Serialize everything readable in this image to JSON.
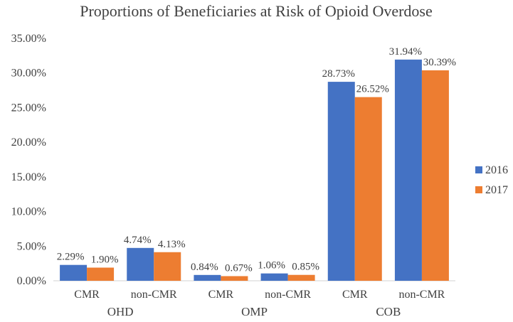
{
  "chart_data": {
    "type": "bar",
    "title": "Proportions of Beneficiaries at Risk of Opioid Overdose",
    "groups": [
      {
        "name": "OHD",
        "categories": [
          "CMR",
          "non-CMR"
        ]
      },
      {
        "name": "OMP",
        "categories": [
          "CMR",
          "non-CMR"
        ]
      },
      {
        "name": "COB",
        "categories": [
          "CMR",
          "non-CMR"
        ]
      }
    ],
    "series": [
      {
        "name": "2016",
        "color": "#4472C4",
        "values": [
          2.29,
          4.74,
          0.84,
          1.06,
          28.73,
          31.94
        ],
        "labels": [
          "2.29%",
          "4.74%",
          "0.84%",
          "1.06%",
          "28.73%",
          "31.94%"
        ]
      },
      {
        "name": "2017",
        "color": "#ED7D31",
        "values": [
          1.9,
          4.13,
          0.67,
          0.85,
          26.52,
          30.39
        ],
        "labels": [
          "1.90%",
          "4.13%",
          "0.67%",
          "0.85%",
          "26.52%",
          "30.39%"
        ]
      }
    ],
    "y_ticks": [
      "0.00%",
      "5.00%",
      "10.00%",
      "15.00%",
      "20.00%",
      "25.00%",
      "30.00%",
      "35.00%"
    ],
    "ylim": [
      0,
      35
    ],
    "xlabel": "",
    "ylabel": "",
    "grid": false,
    "legend_position": "right"
  }
}
